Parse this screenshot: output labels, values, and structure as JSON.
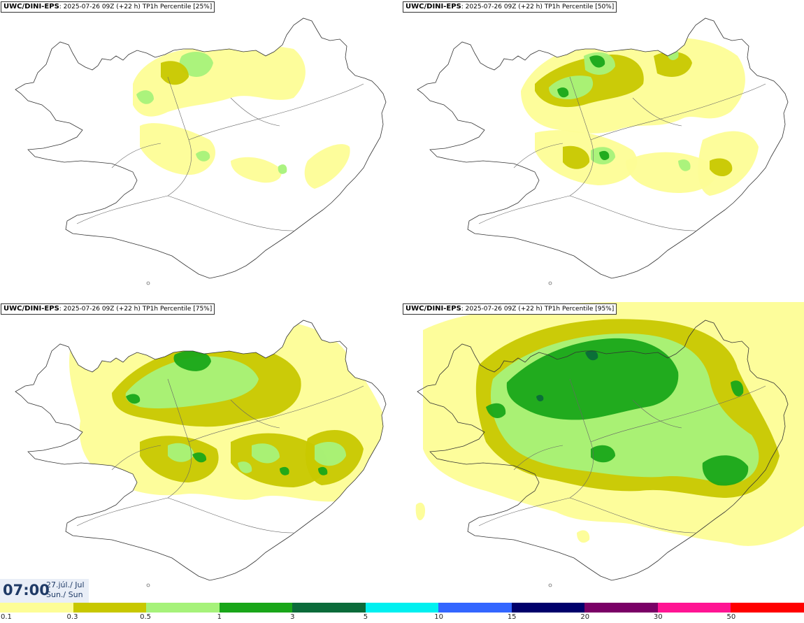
{
  "panels": [
    {
      "model": "UWC/DINI-EPS",
      "info": ": 2025-07-26 09Z (+22 h) TP1h Percentile [25%]"
    },
    {
      "model": "UWC/DINI-EPS",
      "info": ": 2025-07-26 09Z (+22 h) TP1h Percentile [50%]"
    },
    {
      "model": "UWC/DINI-EPS",
      "info": ": 2025-07-26 09Z (+22 h) TP1h Percentile [75%]"
    },
    {
      "model": "UWC/DINI-EPS",
      "info": ": 2025-07-26 09Z (+22 h) TP1h Percentile [95%]"
    }
  ],
  "time": {
    "clock": "07:00",
    "date_line": "27.júl./ Jul",
    "day_line": "Sun./ Sun"
  },
  "legend": {
    "labels": [
      "0.1",
      "0.3",
      "0.5",
      "1",
      "3",
      "5",
      "10",
      "15",
      "20",
      "30",
      "50"
    ],
    "colors": [
      "#fdfd96",
      "#c8c800",
      "#a6f27a",
      "#19a619",
      "#0b6b3a",
      "#00f0f0",
      "#3366ff",
      "#00006b",
      "#7a0066",
      "#ff1493",
      "#ff0000"
    ]
  }
}
